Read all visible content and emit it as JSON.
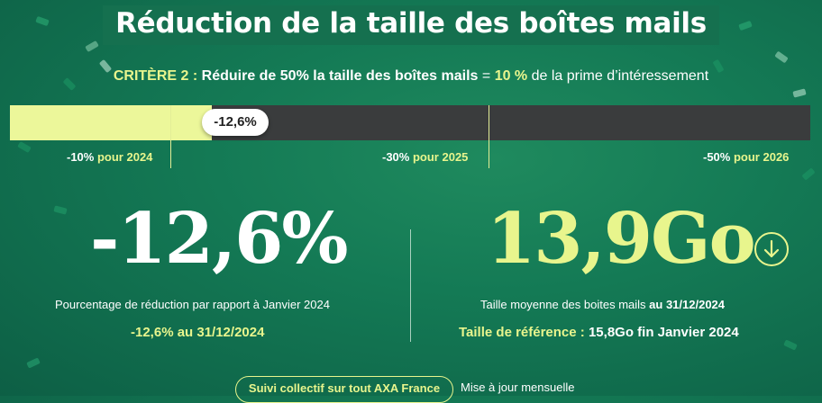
{
  "header": {
    "title": "Réduction de la taille des boîtes mails"
  },
  "criterion": {
    "label": "CRITÈRE 2 :",
    "goal": "Réduire de 50% la taille des boîtes mails",
    "equals": "=",
    "bonus_value": "10 %",
    "bonus_text": "de la prime d’intéressement"
  },
  "progress": {
    "current_label": "-12,6%",
    "current_fraction": 0.252,
    "milestones": [
      {
        "value": "-10%",
        "period": "pour 2024"
      },
      {
        "value": "-30%",
        "period": "pour 2025"
      },
      {
        "value": "-50%",
        "period": "pour 2026"
      }
    ]
  },
  "left_stat": {
    "value": "-12,6%",
    "caption": "Pourcentage de réduction par rapport à Janvier 2024",
    "detail": "-12,6% au 31/12/2024"
  },
  "right_stat": {
    "value": "13,9Go",
    "caption_main": "Taille moyenne des boites mails",
    "caption_date": "au 31/12/2024",
    "ref_label": "Taille de référence :",
    "ref_value": "15,8Go fin Janvier 2024",
    "icon": "arrow-down-circle-icon"
  },
  "footer": {
    "pill_text": "Suivi collectif sur tout AXA France",
    "note": "Mise à jour mensuelle"
  },
  "colors": {
    "background": "#147a55",
    "accent_lime": "#e8f58d",
    "bar_track": "#3a3c3d",
    "bar_fill": "#ecf79a"
  }
}
